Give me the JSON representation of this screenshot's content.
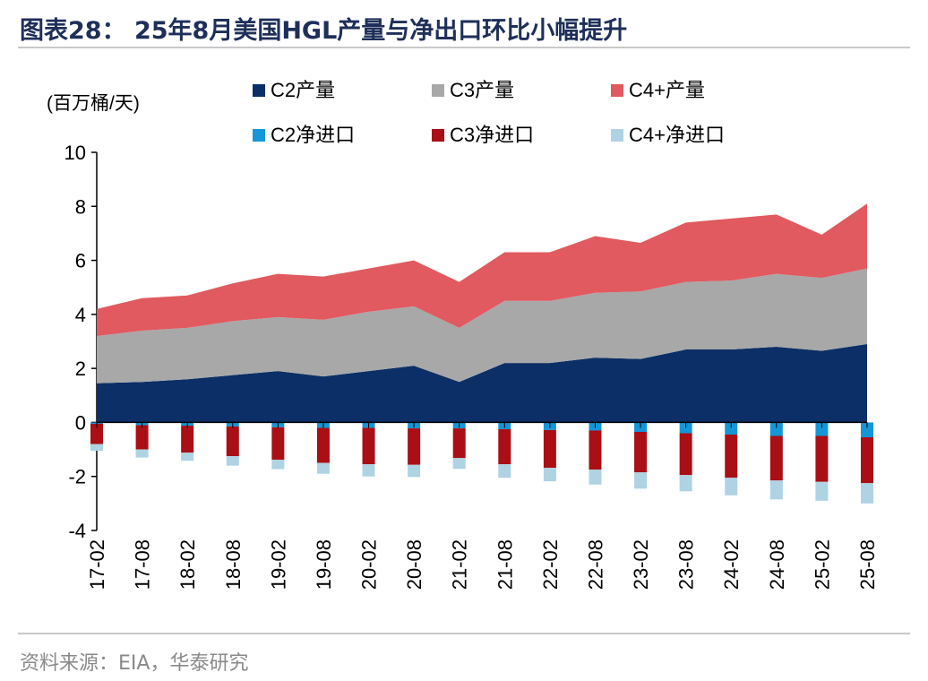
{
  "title": "图表28： 25年8月美国HGL产量与净出口环比小幅提升",
  "source": "资料来源：EIA，华泰研究",
  "colors": {
    "title": "#1f2f5a",
    "C2_prod": "#0b2f66",
    "C3_prod": "#a8a8a8",
    "C4_prod": "#e05a5f",
    "C2_net": "#1496d8",
    "C3_net": "#a90f14",
    "C4_net": "#aed3e3"
  },
  "chart_data": {
    "type": "area",
    "unit_label": "(百万桶/天)",
    "ylim": [
      -4,
      10
    ],
    "yticks": [
      "10",
      "8",
      "6",
      "4",
      "2",
      "0",
      "-2",
      "-4"
    ],
    "ytick_values": [
      10,
      8,
      6,
      4,
      2,
      0,
      -2,
      -4
    ],
    "xtick_labels": [
      "17-02",
      "17-08",
      "18-02",
      "18-08",
      "19-02",
      "19-08",
      "20-02",
      "20-08",
      "21-02",
      "21-08",
      "22-02",
      "22-08",
      "23-02",
      "23-08",
      "24-02",
      "24-08",
      "25-02",
      "25-08"
    ],
    "legend": [
      {
        "key": "C2_prod",
        "label": "C2产量"
      },
      {
        "key": "C3_prod",
        "label": "C3产量"
      },
      {
        "key": "C4_prod",
        "label": "C4+产量"
      },
      {
        "key": "C2_net",
        "label": "C2净进口"
      },
      {
        "key": "C3_net",
        "label": "C3净进口"
      },
      {
        "key": "C4_net",
        "label": "C4+净进口"
      }
    ],
    "x": [
      "17-02",
      "17-08",
      "18-02",
      "18-08",
      "19-02",
      "19-08",
      "20-02",
      "20-08",
      "21-02",
      "21-08",
      "22-02",
      "22-08",
      "23-02",
      "23-08",
      "24-02",
      "24-08",
      "25-02",
      "25-08"
    ],
    "series": [
      {
        "key": "C2_prod",
        "name": "C2产量",
        "values": [
          1.45,
          1.5,
          1.6,
          1.75,
          1.9,
          1.7,
          1.9,
          2.1,
          1.5,
          2.2,
          2.2,
          2.4,
          2.35,
          2.7,
          2.7,
          2.8,
          2.65,
          2.9
        ]
      },
      {
        "key": "C3_prod",
        "name": "C3产量",
        "values": [
          1.75,
          1.9,
          1.9,
          2.0,
          2.0,
          2.1,
          2.2,
          2.2,
          2.0,
          2.3,
          2.3,
          2.4,
          2.5,
          2.5,
          2.55,
          2.7,
          2.7,
          2.8
        ]
      },
      {
        "key": "C4_prod",
        "name": "C4+产量",
        "values": [
          1.0,
          1.2,
          1.2,
          1.4,
          1.6,
          1.6,
          1.6,
          1.7,
          1.7,
          1.8,
          1.8,
          2.1,
          1.8,
          2.2,
          2.3,
          2.2,
          1.6,
          2.4
        ]
      },
      {
        "key": "C2_net",
        "name": "C2净进口",
        "values": [
          -0.05,
          -0.1,
          -0.12,
          -0.15,
          -0.18,
          -0.2,
          -0.2,
          -0.22,
          -0.22,
          -0.25,
          -0.28,
          -0.3,
          -0.35,
          -0.4,
          -0.45,
          -0.5,
          -0.5,
          -0.55
        ]
      },
      {
        "key": "C3_net",
        "name": "C3净进口",
        "values": [
          -0.75,
          -0.9,
          -1.0,
          -1.1,
          -1.2,
          -1.3,
          -1.35,
          -1.35,
          -1.1,
          -1.3,
          -1.4,
          -1.45,
          -1.5,
          -1.55,
          -1.6,
          -1.65,
          -1.7,
          -1.7
        ]
      },
      {
        "key": "C4_net",
        "name": "C4+净进口",
        "values": [
          -0.25,
          -0.3,
          -0.3,
          -0.35,
          -0.35,
          -0.4,
          -0.45,
          -0.45,
          -0.4,
          -0.5,
          -0.5,
          -0.55,
          -0.6,
          -0.6,
          -0.65,
          -0.7,
          -0.7,
          -0.75
        ]
      }
    ],
    "grid": false
  }
}
